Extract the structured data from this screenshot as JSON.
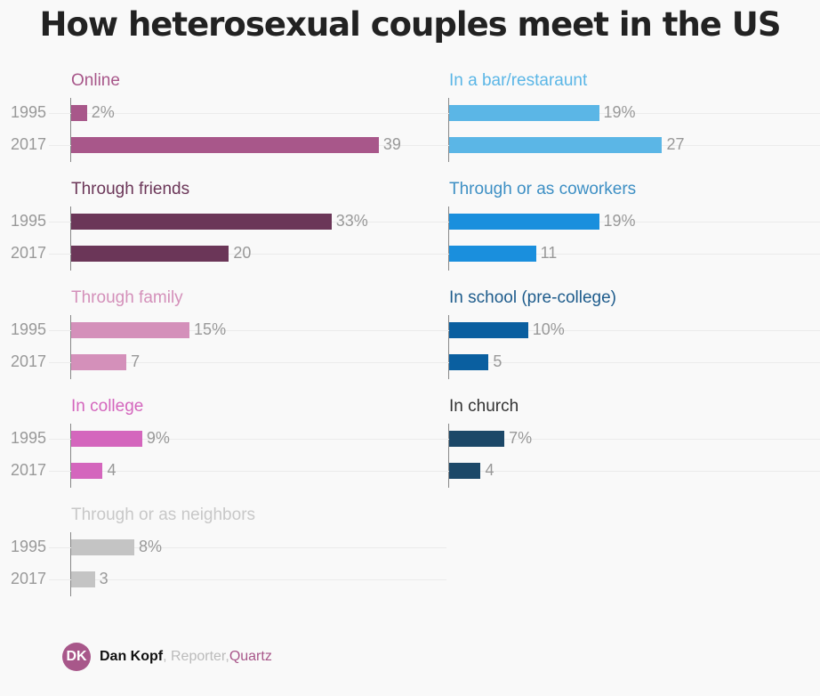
{
  "title": "How heterosexual couples meet in the US",
  "chart_data": [
    {
      "type": "bar",
      "orientation": "horizontal",
      "title": "Online",
      "categories": [
        "1995",
        "2017"
      ],
      "values": [
        2,
        39
      ],
      "labels": [
        "2%",
        "39"
      ],
      "color": "#a8578a",
      "title_color": "#a8578a",
      "xlim": [
        0,
        40
      ]
    },
    {
      "type": "bar",
      "orientation": "horizontal",
      "title": "Through friends",
      "categories": [
        "1995",
        "2017"
      ],
      "values": [
        33,
        20
      ],
      "labels": [
        "33%",
        "20"
      ],
      "color": "#6b3658",
      "title_color": "#6b3658",
      "xlim": [
        0,
        40
      ]
    },
    {
      "type": "bar",
      "orientation": "horizontal",
      "title": "Through family",
      "categories": [
        "1995",
        "2017"
      ],
      "values": [
        15,
        7
      ],
      "labels": [
        "15%",
        "7"
      ],
      "color": "#d490ba",
      "title_color": "#d490ba",
      "xlim": [
        0,
        40
      ]
    },
    {
      "type": "bar",
      "orientation": "horizontal",
      "title": "In college",
      "categories": [
        "1995",
        "2017"
      ],
      "values": [
        9,
        4
      ],
      "labels": [
        "9%",
        "4"
      ],
      "color": "#d466bd",
      "title_color": "#d466bd",
      "xlim": [
        0,
        40
      ]
    },
    {
      "type": "bar",
      "orientation": "horizontal",
      "title": "Through or as neighbors",
      "categories": [
        "1995",
        "2017"
      ],
      "values": [
        8,
        3
      ],
      "labels": [
        "8%",
        "3"
      ],
      "color": "#c4c4c4",
      "title_color": "#c8c8c8",
      "xlim": [
        0,
        40
      ]
    },
    {
      "type": "bar",
      "orientation": "horizontal",
      "title": "In a bar/restaraunt",
      "categories": [
        "1995",
        "2017"
      ],
      "values": [
        19,
        27
      ],
      "labels": [
        "19%",
        "27"
      ],
      "color": "#5bb6e6",
      "title_color": "#5bb6e6",
      "xlim": [
        0,
        40
      ]
    },
    {
      "type": "bar",
      "orientation": "horizontal",
      "title": "Through or as coworkers",
      "categories": [
        "1995",
        "2017"
      ],
      "values": [
        19,
        11
      ],
      "labels": [
        "19%",
        "11"
      ],
      "color": "#1a8fdd",
      "title_color": "#3d8fc4",
      "xlim": [
        0,
        40
      ]
    },
    {
      "type": "bar",
      "orientation": "horizontal",
      "title": "In school (pre-college)",
      "categories": [
        "1995",
        "2017"
      ],
      "values": [
        10,
        5
      ],
      "labels": [
        "10%",
        "5"
      ],
      "color": "#0a5fa0",
      "title_color": "#1e5c8c",
      "xlim": [
        0,
        40
      ]
    },
    {
      "type": "bar",
      "orientation": "horizontal",
      "title": "In church",
      "categories": [
        "1995",
        "2017"
      ],
      "values": [
        7,
        4
      ],
      "labels": [
        "7%",
        "4"
      ],
      "color": "#1c4868",
      "title_color": "#333333",
      "xlim": [
        0,
        40
      ]
    }
  ],
  "footer": {
    "initials": "DK",
    "name": "Dan Kopf",
    "role": ", Reporter, ",
    "org": "Quartz"
  }
}
